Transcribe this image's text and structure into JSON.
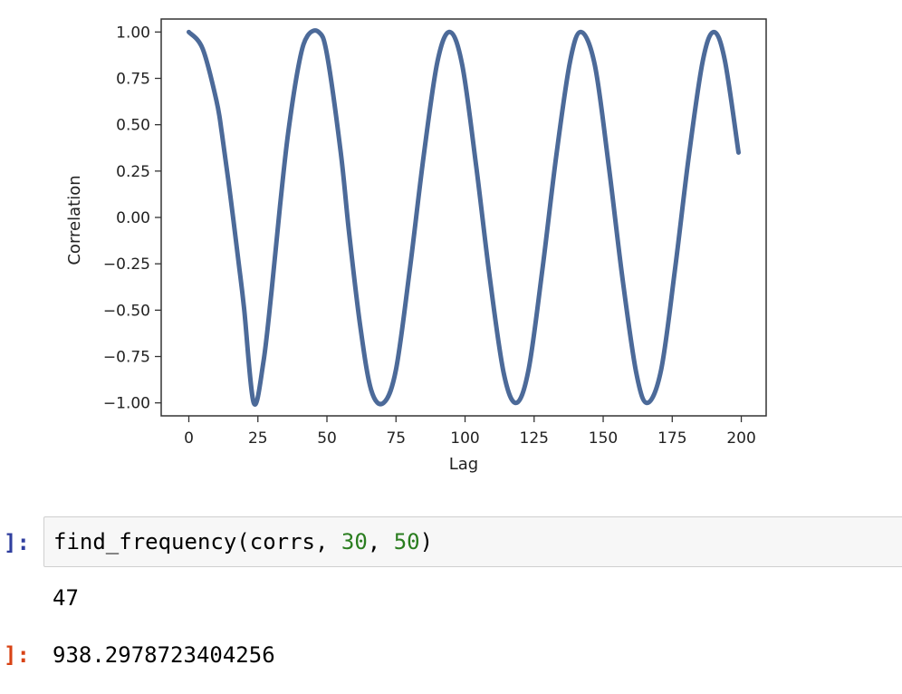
{
  "chart_data": {
    "type": "line",
    "title": "",
    "xlabel": "Lag",
    "ylabel": "Correlation",
    "xlim": [
      -10,
      209
    ],
    "ylim": [
      -1.07,
      1.07
    ],
    "x_ticks": [
      0,
      25,
      50,
      75,
      100,
      125,
      150,
      175,
      200
    ],
    "y_ticks": [
      1.0,
      0.75,
      0.5,
      0.25,
      0.0,
      -0.25,
      -0.5,
      -0.75,
      -1.0
    ],
    "x_tick_labels": [
      "0",
      "25",
      "50",
      "75",
      "100",
      "125",
      "150",
      "175",
      "200"
    ],
    "y_tick_labels": [
      "1.00",
      "0.75",
      "0.50",
      "0.25",
      "0.00",
      "−0.25",
      "−0.50",
      "−0.75",
      "−1.00"
    ],
    "grid": false,
    "series": [
      {
        "color": "#4c6a99",
        "points": [
          [
            0,
            1.0
          ],
          [
            5,
            0.91
          ],
          [
            10,
            0.63
          ],
          [
            12,
            0.45
          ],
          [
            15,
            0.12
          ],
          [
            18,
            -0.24
          ],
          [
            20,
            -0.49
          ],
          [
            23.5,
            -1.0
          ],
          [
            27,
            -0.78
          ],
          [
            30,
            -0.39
          ],
          [
            33,
            0.06
          ],
          [
            36,
            0.46
          ],
          [
            40,
            0.84
          ],
          [
            43,
            0.98
          ],
          [
            47,
            1.0
          ],
          [
            50,
            0.88
          ],
          [
            55,
            0.35
          ],
          [
            58,
            -0.08
          ],
          [
            62,
            -0.58
          ],
          [
            66,
            -0.93
          ],
          [
            70.5,
            -1.0
          ],
          [
            75,
            -0.82
          ],
          [
            80,
            -0.28
          ],
          [
            85,
            0.33
          ],
          [
            90,
            0.84
          ],
          [
            94.5,
            1.0
          ],
          [
            99,
            0.82
          ],
          [
            104,
            0.28
          ],
          [
            109,
            -0.33
          ],
          [
            114,
            -0.84
          ],
          [
            118.5,
            -1.0
          ],
          [
            123,
            -0.82
          ],
          [
            128,
            -0.28
          ],
          [
            133,
            0.33
          ],
          [
            138,
            0.84
          ],
          [
            142,
            1.0
          ],
          [
            147,
            0.82
          ],
          [
            152,
            0.28
          ],
          [
            157,
            -0.33
          ],
          [
            162,
            -0.84
          ],
          [
            166,
            -1.0
          ],
          [
            171,
            -0.82
          ],
          [
            176,
            -0.28
          ],
          [
            181,
            0.33
          ],
          [
            186,
            0.84
          ],
          [
            190,
            1.0
          ],
          [
            194,
            0.85
          ],
          [
            199,
            0.35
          ]
        ]
      }
    ]
  },
  "cells": {
    "input_prompt": "]:",
    "input_code_prefix": "find_frequency(corrs, ",
    "arg1": "30",
    "sep": ", ",
    "arg2": "50",
    "input_code_suffix": ")",
    "stdout": "47",
    "output_prompt": "]:",
    "output_value": "938.2978723404256"
  }
}
